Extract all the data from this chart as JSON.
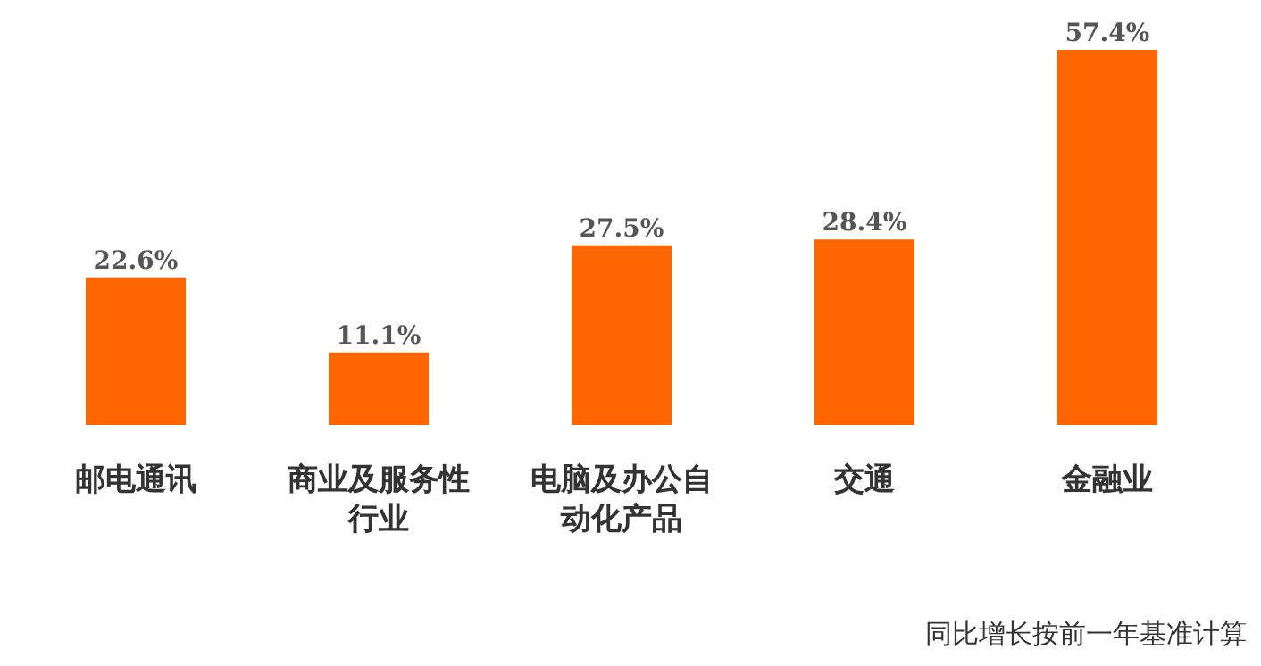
{
  "chart_data": {
    "type": "bar",
    "categories": [
      "邮电通讯",
      "商业及服务性行业",
      "电脑及办公自动化产品",
      "交通",
      "金融业"
    ],
    "values": [
      22.6,
      11.1,
      27.5,
      28.4,
      57.4
    ],
    "value_labels": [
      "22.6%",
      "11.1%",
      "27.5%",
      "28.4%",
      "57.4%"
    ],
    "color": "#ff6600",
    "annotations": [
      "同比增长按前一年基准计算"
    ]
  }
}
